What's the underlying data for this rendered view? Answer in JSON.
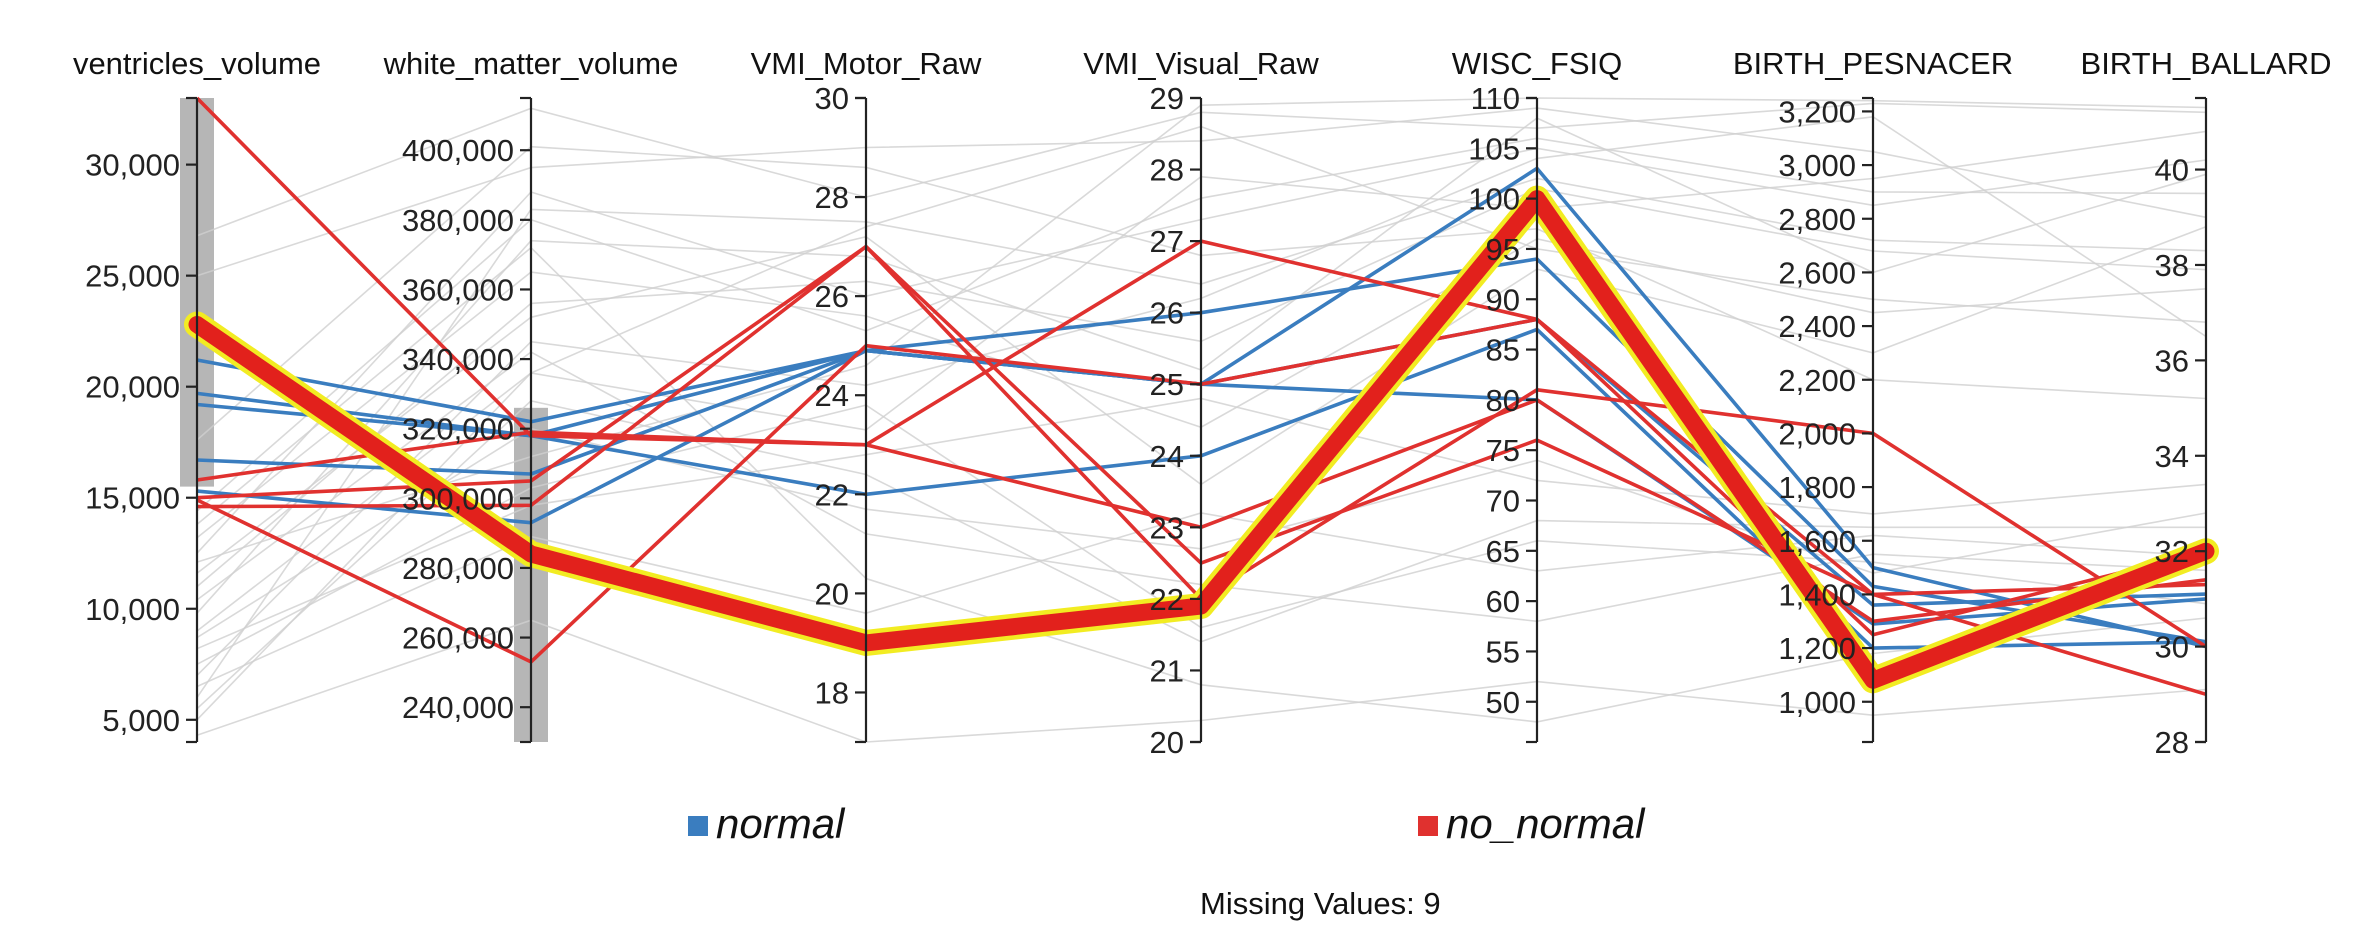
{
  "chart_data": {
    "type": "parallel_coordinates",
    "axes": [
      {
        "name": "ventricles_volume",
        "min": 4000,
        "max": 33000,
        "ticks": [
          5000,
          10000,
          15000,
          20000,
          25000,
          30000
        ],
        "tick_labels": [
          "5,000",
          "10,000",
          "15,000",
          "20,000",
          "25,000",
          "30,000"
        ],
        "brush": [
          15500,
          33000
        ]
      },
      {
        "name": "white_matter_volume",
        "min": 230000,
        "max": 415000,
        "ticks": [
          240000,
          260000,
          280000,
          300000,
          320000,
          340000,
          360000,
          380000,
          400000
        ],
        "tick_labels": [
          "240,000",
          "260,000",
          "280,000",
          "300,000",
          "320,000",
          "340,000",
          "360,000",
          "380,000",
          "400,000"
        ],
        "brush": [
          230000,
          326000
        ]
      },
      {
        "name": "VMI_Motor_Raw",
        "min": 17,
        "max": 30,
        "ticks": [
          18,
          20,
          22,
          24,
          26,
          28,
          30
        ],
        "tick_labels": [
          "18",
          "20",
          "22",
          "24",
          "26",
          "28",
          "30"
        ]
      },
      {
        "name": "VMI_Visual_Raw",
        "min": 20,
        "max": 29,
        "ticks": [
          20,
          21,
          22,
          23,
          24,
          25,
          26,
          27,
          28,
          29
        ],
        "tick_labels": [
          "20",
          "21",
          "22",
          "23",
          "24",
          "25",
          "26",
          "27",
          "28",
          "29"
        ]
      },
      {
        "name": "WISC_FSIQ",
        "min": 46,
        "max": 110,
        "ticks": [
          50,
          55,
          60,
          65,
          70,
          75,
          80,
          85,
          90,
          95,
          100,
          105,
          110
        ],
        "tick_labels": [
          "50",
          "55",
          "60",
          "65",
          "70",
          "75",
          "80",
          "85",
          "90",
          "95",
          "100",
          "105",
          "110"
        ]
      },
      {
        "name": "BIRTH_PESNACER",
        "min": 850,
        "max": 3250,
        "ticks": [
          1000,
          1200,
          1400,
          1600,
          1800,
          2000,
          2200,
          2400,
          2600,
          2800,
          3000,
          3200
        ],
        "tick_labels": [
          "1,000",
          "1,200",
          "1,400",
          "1,600",
          "1,800",
          "2,000",
          "2,200",
          "2,400",
          "2,600",
          "2,800",
          "3,000",
          "3,200"
        ]
      },
      {
        "name": "BIRTH_BALLARD",
        "min": 28,
        "max": 41.5,
        "ticks": [
          28,
          30,
          32,
          34,
          36,
          38,
          40
        ],
        "tick_labels": [
          "28",
          "30",
          "32",
          "34",
          "36",
          "38",
          "40"
        ]
      }
    ],
    "series": [
      {
        "name": "normal",
        "color": "#3a7dbf",
        "lines": [
          [
            21200,
            322000,
            24.9,
            25.0,
            103,
            1500,
            30.0
          ],
          [
            19700,
            318000,
            24.9,
            26.0,
            94,
            1430,
            30.1
          ],
          [
            19200,
            318000,
            22.0,
            24.0,
            87,
            1200,
            30.1
          ],
          [
            16700,
            307000,
            24.9,
            25.0,
            80,
            1290,
            31.0
          ],
          [
            15300,
            293000,
            24.9,
            25.0,
            88,
            1360,
            31.1
          ]
        ]
      },
      {
        "name": "no_normal",
        "color": "#e0312f",
        "lines": [
          [
            33000,
            318000,
            23.0,
            23.0,
            80,
            1300,
            31.4
          ],
          [
            15800,
            319000,
            23.0,
            27.0,
            88,
            1400,
            31.3
          ],
          [
            15000,
            305000,
            27.0,
            22.0,
            81,
            2000,
            30.0
          ],
          [
            14900,
            253000,
            25.0,
            25.0,
            88,
            1250,
            32.0
          ],
          [
            14600,
            298000,
            27.0,
            22.5,
            76,
            1400,
            29.0
          ]
        ]
      }
    ],
    "highlighted_line": [
      22800,
      284000,
      19.0,
      21.9,
      100,
      1080,
      32.0
    ],
    "background_lines": [
      [
        26800,
        412000,
        28.0,
        28.8,
        107,
        3230,
        41.2
      ],
      [
        25000,
        395000,
        29.0,
        28.4,
        109,
        3050,
        39.0
      ],
      [
        12500,
        388000,
        26.0,
        27.3,
        105,
        2850,
        40.2
      ],
      [
        6000,
        383000,
        27.5,
        26.4,
        102,
        2720,
        38.3
      ],
      [
        9800,
        374000,
        26.8,
        25.2,
        108,
        2600,
        39.9
      ],
      [
        13200,
        365000,
        25.6,
        24.4,
        96,
        2450,
        37.5
      ],
      [
        11600,
        352000,
        27.2,
        23.6,
        93,
        2300,
        38.8
      ],
      [
        7000,
        345000,
        24.2,
        26.2,
        104,
        3180,
        36.5
      ],
      [
        9000,
        336000,
        23.3,
        27.9,
        99,
        2950,
        40.8
      ],
      [
        5500,
        328000,
        22.4,
        21.4,
        68,
        1650,
        32.5
      ],
      [
        10400,
        342000,
        21.2,
        22.2,
        58,
        1550,
        31.6
      ],
      [
        13800,
        372000,
        20.3,
        20.8,
        48,
        1180,
        30.6
      ],
      [
        8200,
        298000,
        22.8,
        24.8,
        72,
        1700,
        33.4
      ],
      [
        4300,
        265000,
        17.0,
        20.3,
        52,
        950,
        29.1
      ],
      [
        12100,
        312000,
        24.6,
        28.9,
        110,
        3240,
        41.3
      ],
      [
        17600,
        401000,
        28.6,
        26.8,
        97,
        2200,
        35.2
      ],
      [
        6500,
        289000,
        19.6,
        23.2,
        63,
        1620,
        31.9
      ],
      [
        11000,
        356000,
        26.3,
        25.6,
        101,
        2680,
        37.9
      ],
      [
        8700,
        320000,
        21.7,
        22.7,
        74,
        1480,
        32.8
      ],
      [
        14400,
        380000,
        25.3,
        27.6,
        106,
        2900,
        39.5
      ],
      [
        7500,
        303000,
        23.8,
        21.6,
        66,
        1520,
        30.9
      ],
      [
        5000,
        336000,
        27.4,
        28.6,
        95,
        2500,
        36.8
      ]
    ],
    "legend": [
      {
        "label": "normal",
        "color": "#3a7dbf"
      },
      {
        "label": "no_normal",
        "color": "#e0312f"
      }
    ],
    "missing_values_label": "Missing Values: 9"
  }
}
